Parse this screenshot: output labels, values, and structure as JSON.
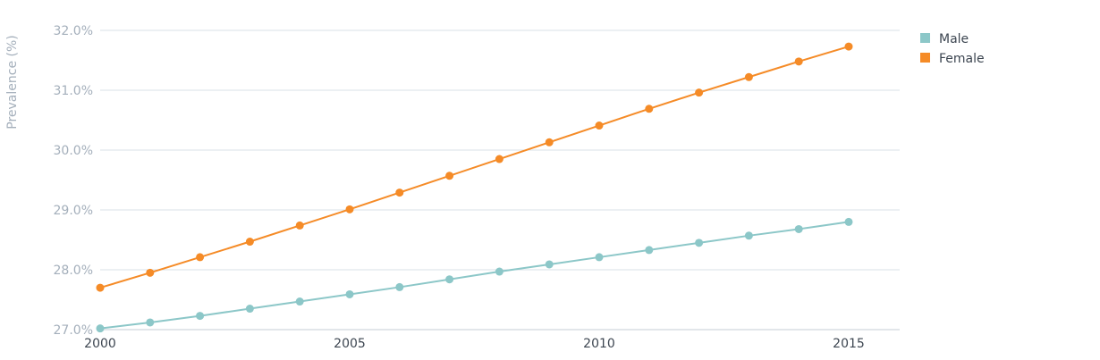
{
  "chart_data": {
    "type": "line",
    "title": "",
    "xlabel": "",
    "ylabel": "Prevalence (%)",
    "x": [
      2000,
      2001,
      2002,
      2003,
      2004,
      2005,
      2006,
      2007,
      2008,
      2009,
      2010,
      2011,
      2012,
      2013,
      2014,
      2015
    ],
    "x_ticks": [
      "2000",
      "2005",
      "2010",
      "2015"
    ],
    "y_ticks": [
      "27.0%",
      "28.0%",
      "29.0%",
      "30.0%",
      "31.0%",
      "32.0%"
    ],
    "ylim": [
      27.0,
      32.0
    ],
    "xlim": [
      2000,
      2016
    ],
    "grid": true,
    "legend_position": "top-right",
    "series": [
      {
        "name": "Male",
        "color": "#8cc7c8",
        "values": [
          27.02,
          27.12,
          27.23,
          27.35,
          27.47,
          27.59,
          27.71,
          27.84,
          27.97,
          28.09,
          28.21,
          28.33,
          28.45,
          28.57,
          28.68,
          28.8
        ]
      },
      {
        "name": "Female",
        "color": "#f58b27",
        "values": [
          27.7,
          27.95,
          28.21,
          28.47,
          28.74,
          29.01,
          29.29,
          29.57,
          29.85,
          30.13,
          30.41,
          30.69,
          30.96,
          31.22,
          31.48,
          31.73
        ]
      }
    ]
  }
}
